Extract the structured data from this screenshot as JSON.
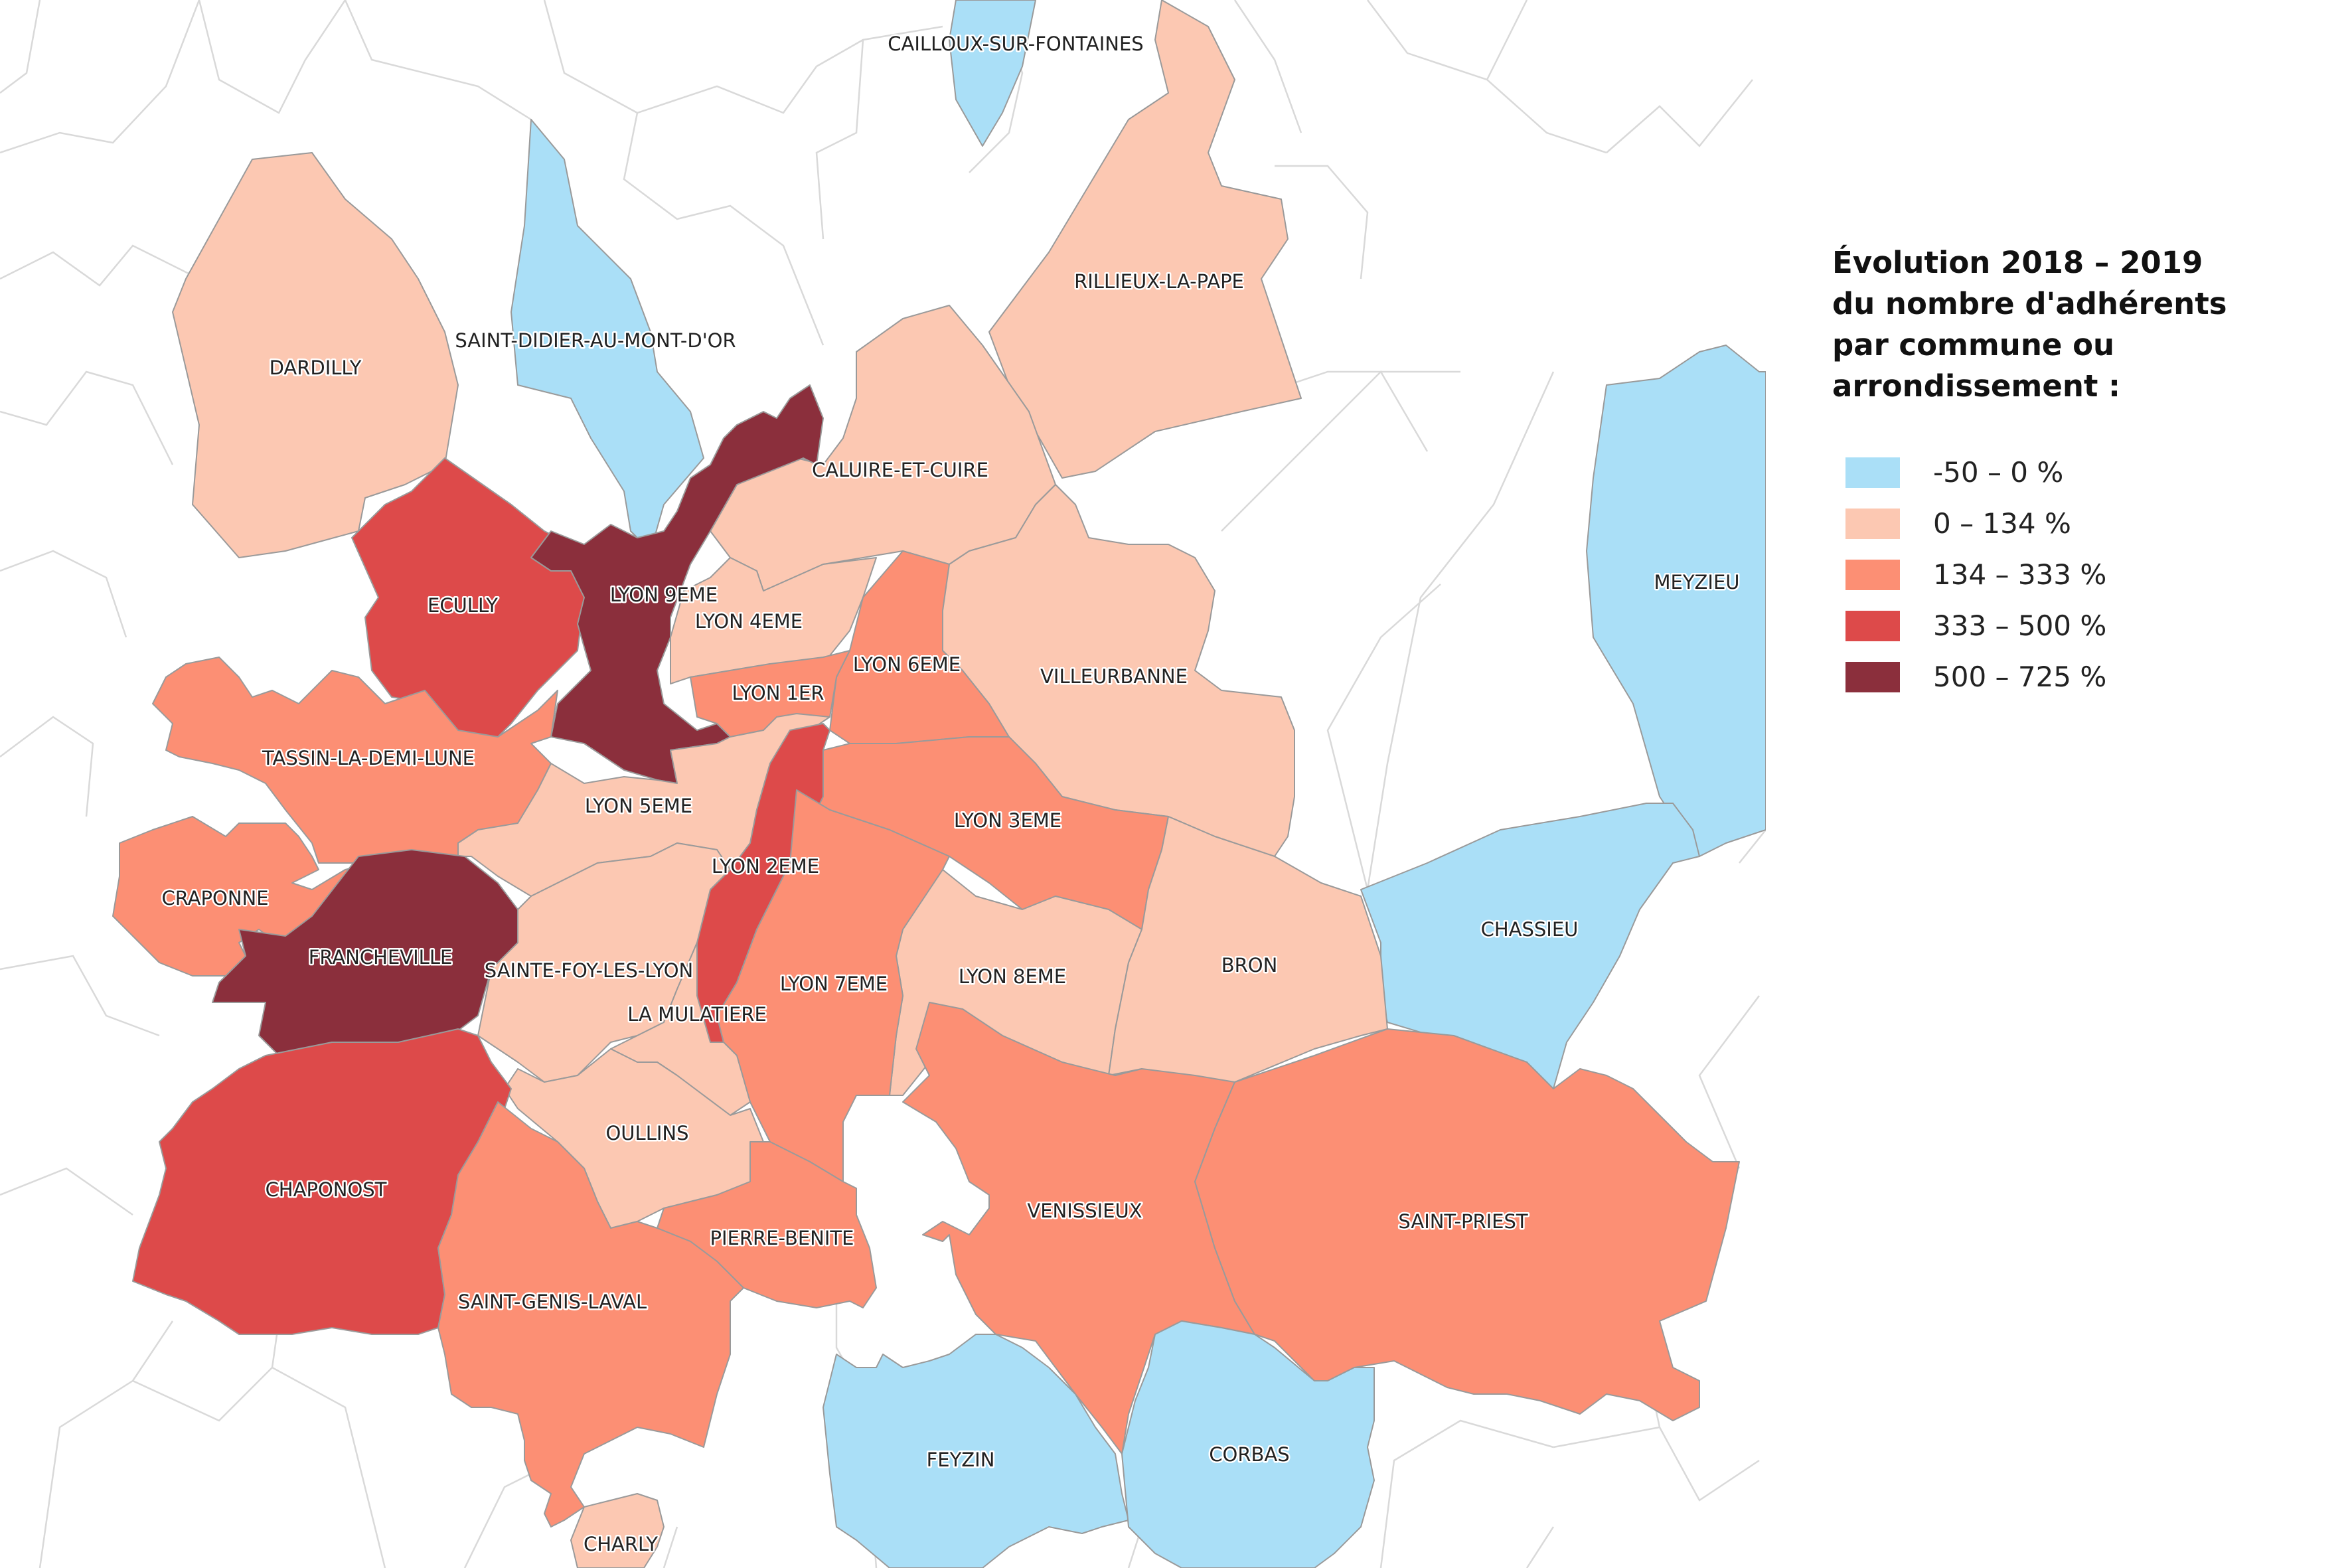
{
  "legend": {
    "title_lines": [
      "Évolution 2018 – 2019",
      "du nombre d'adhérents",
      "par commune ou",
      "arrondissement :"
    ],
    "classes": [
      {
        "label": "-50 – 0 %",
        "color": "#aadff7"
      },
      {
        "label": "0 – 134 %",
        "color": "#fcc8b2"
      },
      {
        "label": "134 – 333 %",
        "color": "#fc8f74"
      },
      {
        "label": "333 – 500 %",
        "color": "#dd4a4a"
      },
      {
        "label": "500 – 725 %",
        "color": "#8b2f3c"
      }
    ]
  },
  "communes": [
    {
      "name": "CAILLOUX-SUR-FONTAINES",
      "class": 0
    },
    {
      "name": "SAINT-DIDIER-AU-MONT-D'OR",
      "class": 0
    },
    {
      "name": "DARDILLY",
      "class": 1
    },
    {
      "name": "RILLIEUX-LA-PAPE",
      "class": 1
    },
    {
      "name": "CALUIRE-ET-CUIRE",
      "class": 1
    },
    {
      "name": "ECULLY",
      "class": 3
    },
    {
      "name": "LYON 9EME",
      "class": 4
    },
    {
      "name": "LYON 4EME",
      "class": 1
    },
    {
      "name": "LYON 6EME",
      "class": 2
    },
    {
      "name": "VILLEURBANNE",
      "class": 1
    },
    {
      "name": "LYON 1ER",
      "class": 2
    },
    {
      "name": "MEYZIEU",
      "class": 0
    },
    {
      "name": "TASSIN-LA-DEMI-LUNE",
      "class": 2
    },
    {
      "name": "LYON 5EME",
      "class": 1
    },
    {
      "name": "LYON 3EME",
      "class": 2
    },
    {
      "name": "LYON 2EME",
      "class": 3
    },
    {
      "name": "CRAPONNE",
      "class": 2
    },
    {
      "name": "CHASSIEU",
      "class": 0
    },
    {
      "name": "FRANCHEVILLE",
      "class": 4
    },
    {
      "name": "SAINTE-FOY-LES-LYON",
      "class": 1
    },
    {
      "name": "LYON 8EME",
      "class": 1
    },
    {
      "name": "BRON",
      "class": 1
    },
    {
      "name": "LYON 7EME",
      "class": 2
    },
    {
      "name": "LA MULATIERE",
      "class": 1
    },
    {
      "name": "OULLINS",
      "class": 1
    },
    {
      "name": "CHAPONOST",
      "class": 3
    },
    {
      "name": "VENISSIEUX",
      "class": 2
    },
    {
      "name": "SAINT-PRIEST",
      "class": 2
    },
    {
      "name": "PIERRE-BENITE",
      "class": 2
    },
    {
      "name": "SAINT-GENIS-LAVAL",
      "class": 2
    },
    {
      "name": "FEYZIN",
      "class": 0
    },
    {
      "name": "CORBAS",
      "class": 0
    },
    {
      "name": "CHARLY",
      "class": 1
    }
  ]
}
